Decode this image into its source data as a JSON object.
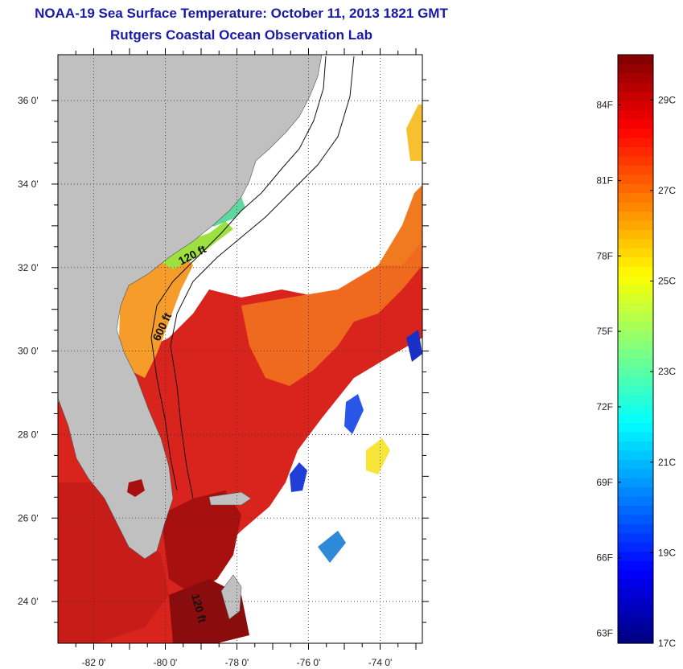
{
  "header": {
    "title": "NOAA-19 Sea Surface Temperature:  October 11, 2013 1821 GMT",
    "subtitle": "Rutgers Coastal Ocean Observation Lab"
  },
  "map": {
    "lat_labels": [
      "24 0'",
      "26 0'",
      "28 0'",
      "30 0'",
      "32 0'",
      "34 0'",
      "36 0'"
    ],
    "lon_labels": [
      "-82 0'",
      "-80 0'",
      "-78 0'",
      "-76 0'",
      "-74 0'"
    ],
    "contour_labels": [
      "120 ft",
      "600 ft",
      "120 ft"
    ],
    "land_color": "#c0c0c0",
    "cloud_color": "#ffffff"
  },
  "colorbar": {
    "fahrenheit": [
      "84F",
      "81F",
      "78F",
      "75F",
      "72F",
      "69F",
      "66F",
      "63F"
    ],
    "celsius": [
      "29C",
      "27C",
      "25C",
      "23C",
      "21C",
      "19C",
      "17C"
    ],
    "min_c": 17,
    "max_c": 30
  }
}
